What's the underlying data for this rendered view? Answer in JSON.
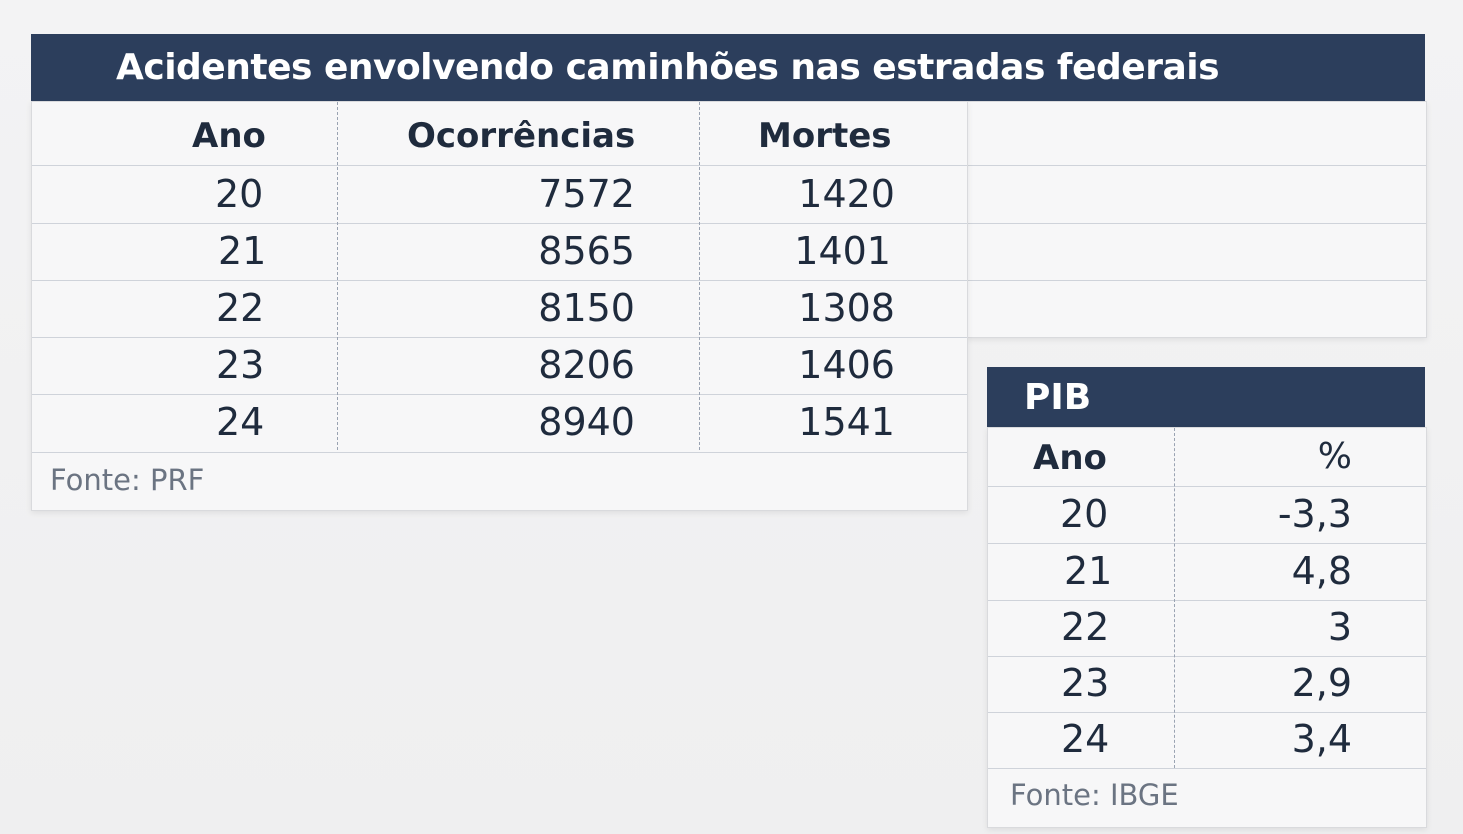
{
  "accidents": {
    "title": "Acidentes envolvendo caminhões nas estradas  federais",
    "headers": {
      "year": "Ano",
      "occurrences": "Ocorrências",
      "deaths": "Mortes"
    },
    "rows": [
      {
        "year": "20",
        "occurrences": "7572",
        "deaths": "1420"
      },
      {
        "year": "21",
        "occurrences": "8565",
        "deaths": "1401"
      },
      {
        "year": "22",
        "occurrences": "8150",
        "deaths": "1308"
      },
      {
        "year": "23",
        "occurrences": "8206",
        "deaths": "1406"
      },
      {
        "year": "24",
        "occurrences": "8940",
        "deaths": "1541"
      }
    ],
    "source": "Fonte: PRF"
  },
  "pib": {
    "title": "PIB",
    "headers": {
      "year": "Ano",
      "percent": "%"
    },
    "rows": [
      {
        "year": "20",
        "percent": "-3,3"
      },
      {
        "year": "21",
        "percent": "4,8"
      },
      {
        "year": "22",
        "percent": "3"
      },
      {
        "year": "23",
        "percent": "2,9"
      },
      {
        "year": "24",
        "percent": "3,4"
      }
    ],
    "source": "Fonte: IBGE"
  },
  "colors": {
    "header_bg": "#2c3e5c",
    "text": "#1f2b3d",
    "source_text": "#6b7482"
  }
}
